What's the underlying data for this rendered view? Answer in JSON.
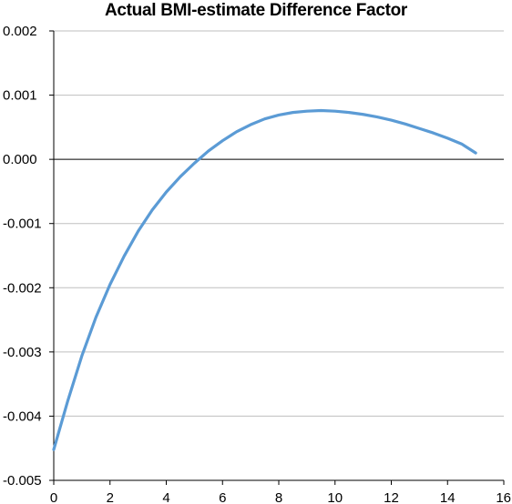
{
  "chart_data": {
    "type": "line",
    "title": "Actual BMI-estimate Difference Factor",
    "xlabel": "",
    "ylabel": "",
    "xlim": [
      0,
      16
    ],
    "ylim": [
      -0.005,
      0.002
    ],
    "xticks": [
      0,
      2,
      4,
      6,
      8,
      10,
      12,
      14,
      16
    ],
    "xtick_labels": [
      "0",
      "2",
      "4",
      "6",
      "8",
      "10",
      "12",
      "14",
      "16"
    ],
    "yticks": [
      0.002,
      0.001,
      0.0,
      -0.001,
      -0.002,
      -0.003,
      -0.004,
      -0.005
    ],
    "ytick_labels": [
      "0.002",
      "0.001",
      "0.000",
      "-0.001",
      "-0.002",
      "-0.003",
      "-0.004",
      "-0.005"
    ],
    "grid": "horizontal",
    "legend": "none",
    "series": [
      {
        "color": "#5b9bd5",
        "x": [
          0,
          0.5,
          1,
          1.5,
          2,
          2.5,
          3,
          3.5,
          4,
          4.5,
          5,
          5.5,
          6,
          6.5,
          7,
          7.5,
          8,
          8.5,
          9,
          9.5,
          10,
          10.5,
          11,
          11.5,
          12,
          12.5,
          13,
          13.5,
          14,
          14.5,
          15
        ],
        "y": [
          -0.00452,
          -0.00376,
          -0.00306,
          -0.00246,
          -0.00195,
          -0.00151,
          -0.00112,
          -0.00079,
          -0.00051,
          -0.00027,
          -6e-05,
          0.00013,
          0.00029,
          0.00043,
          0.00054,
          0.00063,
          0.00069,
          0.00073,
          0.00075,
          0.00076,
          0.00075,
          0.00073,
          0.0007,
          0.00066,
          0.00061,
          0.00055,
          0.00048,
          0.00041,
          0.00033,
          0.00024,
          0.0001
        ]
      }
    ]
  }
}
